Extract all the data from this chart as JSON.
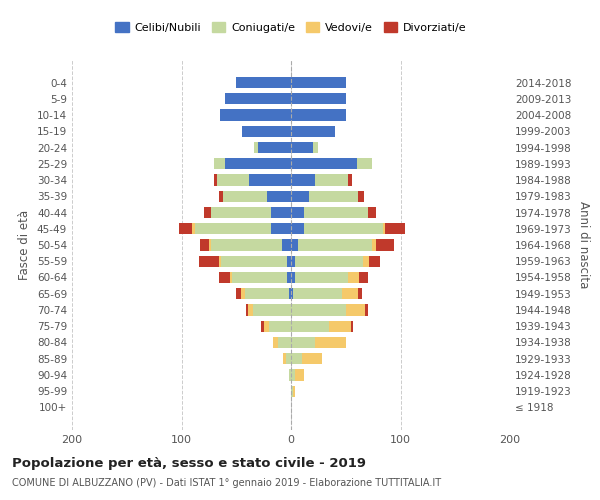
{
  "age_groups": [
    "100+",
    "95-99",
    "90-94",
    "85-89",
    "80-84",
    "75-79",
    "70-74",
    "65-69",
    "60-64",
    "55-59",
    "50-54",
    "45-49",
    "40-44",
    "35-39",
    "30-34",
    "25-29",
    "20-24",
    "15-19",
    "10-14",
    "5-9",
    "0-4"
  ],
  "birth_years": [
    "≤ 1918",
    "1919-1923",
    "1924-1928",
    "1929-1933",
    "1934-1938",
    "1939-1943",
    "1944-1948",
    "1949-1953",
    "1954-1958",
    "1959-1963",
    "1964-1968",
    "1969-1973",
    "1974-1978",
    "1979-1983",
    "1984-1988",
    "1989-1993",
    "1994-1998",
    "1999-2003",
    "2004-2008",
    "2009-2013",
    "2014-2018"
  ],
  "males": {
    "celibi": [
      0,
      0,
      0,
      0,
      0,
      0,
      0,
      2,
      4,
      4,
      8,
      18,
      18,
      22,
      38,
      60,
      30,
      45,
      65,
      60,
      50
    ],
    "coniugati": [
      0,
      0,
      2,
      5,
      12,
      20,
      35,
      40,
      50,
      60,
      65,
      70,
      55,
      40,
      30,
      10,
      4,
      0,
      0,
      0,
      0
    ],
    "vedovi": [
      0,
      0,
      0,
      2,
      4,
      5,
      4,
      4,
      2,
      2,
      2,
      2,
      0,
      0,
      0,
      0,
      0,
      0,
      0,
      0,
      0
    ],
    "divorziati": [
      0,
      0,
      0,
      0,
      0,
      2,
      2,
      4,
      10,
      18,
      8,
      12,
      6,
      4,
      2,
      0,
      0,
      0,
      0,
      0,
      0
    ]
  },
  "females": {
    "nubili": [
      0,
      0,
      0,
      0,
      0,
      0,
      0,
      2,
      4,
      4,
      6,
      12,
      12,
      16,
      22,
      60,
      20,
      40,
      50,
      50,
      50
    ],
    "coniugate": [
      0,
      2,
      4,
      10,
      22,
      35,
      50,
      45,
      48,
      62,
      68,
      72,
      58,
      45,
      30,
      14,
      5,
      0,
      0,
      0,
      0
    ],
    "vedove": [
      0,
      2,
      8,
      18,
      28,
      20,
      18,
      14,
      10,
      5,
      4,
      2,
      0,
      0,
      0,
      0,
      0,
      0,
      0,
      0,
      0
    ],
    "divorziate": [
      0,
      0,
      0,
      0,
      0,
      2,
      2,
      4,
      8,
      10,
      16,
      18,
      8,
      6,
      4,
      0,
      0,
      0,
      0,
      0,
      0
    ]
  },
  "colors": {
    "celibi_nubili": "#4472C4",
    "coniugati": "#C5D9A0",
    "vedovi": "#F5C96A",
    "divorziati": "#C0392B"
  },
  "xlim": [
    -200,
    200
  ],
  "xticks": [
    -200,
    -100,
    0,
    100,
    200
  ],
  "xticklabels": [
    "200",
    "100",
    "0",
    "100",
    "200"
  ],
  "title": "Popolazione per età, sesso e stato civile - 2019",
  "subtitle": "COMUNE DI ALBUZZANO (PV) - Dati ISTAT 1° gennaio 2019 - Elaborazione TUTTITALIA.IT",
  "ylabel_left": "Fasce di età",
  "ylabel_right": "Anni di nascita",
  "legend_labels": [
    "Celibi/Nubili",
    "Coniugati/e",
    "Vedovi/e",
    "Divorziati/e"
  ],
  "background_color": "#ffffff",
  "grid_color": "#cccccc"
}
